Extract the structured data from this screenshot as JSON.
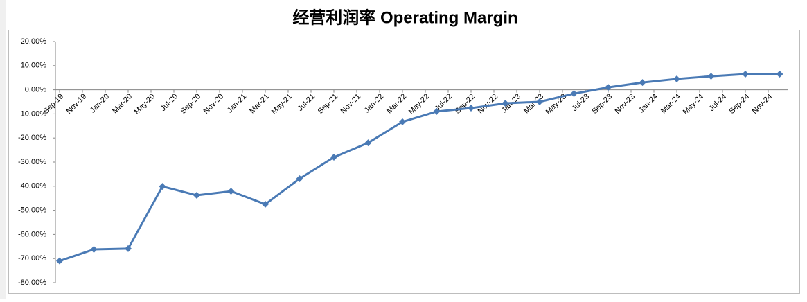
{
  "chart_data": {
    "type": "line",
    "title": "经营利润率 Operating Margin",
    "x": [
      "Sep-19",
      "Dec-19",
      "Mar-20",
      "Jun-20",
      "Sep-20",
      "Dec-20",
      "Mar-21",
      "Jun-21",
      "Sep-21",
      "Dec-21",
      "Mar-22",
      "Jun-22",
      "Sep-22",
      "Dec-22",
      "Mar-23",
      "Jun-23",
      "Sep-23",
      "Dec-23",
      "Mar-24",
      "Jun-24",
      "Sep-24",
      "Dec-24"
    ],
    "series": [
      {
        "color": "#4a7ab5",
        "values": [
          -71,
          -66.2,
          -65.9,
          -40.1,
          -43.8,
          -42.1,
          -47.5,
          -36.9,
          -28,
          -22,
          -13.3,
          -9,
          -7.6,
          -5.6,
          -5,
          -1.6,
          1,
          3,
          4.5,
          5.6,
          6.5,
          6.5
        ]
      }
    ],
    "xticks": [
      "Sep-19",
      "Nov-19",
      "Jan-20",
      "Mar-20",
      "May-20",
      "Jul-20",
      "Sep-20",
      "Nov-20",
      "Jan-21",
      "Mar-21",
      "May-21",
      "Jul-21",
      "Sep-21",
      "Nov-21",
      "Jan-22",
      "Mar-22",
      "May-22",
      "Jul-22",
      "Sep-22",
      "Nov-22",
      "Jan-23",
      "Mar-23",
      "May-23",
      "Jul-23",
      "Sep-23",
      "Nov-23",
      "Jan-24",
      "Mar-24",
      "May-24",
      "Jul-24",
      "Sep-24",
      "Nov-24"
    ],
    "ylim": [
      -80,
      20
    ],
    "yticks": [
      {
        "value": 20,
        "label": "20.00%"
      },
      {
        "value": 10,
        "label": "10.00%"
      },
      {
        "value": 0,
        "label": "0.00%"
      },
      {
        "value": -10,
        "label": "-10.00%"
      },
      {
        "value": -20,
        "label": "-20.00%"
      },
      {
        "value": -30,
        "label": "-30.00%"
      },
      {
        "value": -40,
        "label": "-40.00%"
      },
      {
        "value": -50,
        "label": "-50.00%"
      },
      {
        "value": -60,
        "label": "-60.00%"
      },
      {
        "value": -70,
        "label": "-70.00%"
      },
      {
        "value": -80,
        "label": "-80.00%"
      }
    ],
    "grid": false
  }
}
